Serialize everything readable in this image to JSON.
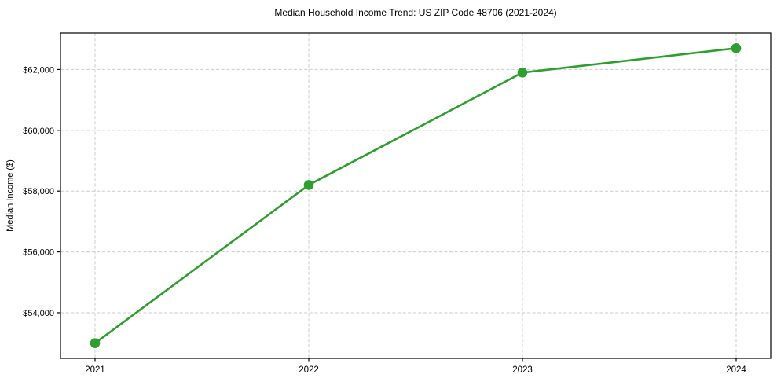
{
  "chart_data": {
    "type": "line",
    "title": "Median Household Income Trend: US ZIP Code 48706 (2021-2024)",
    "xlabel": "",
    "ylabel": "Median Income ($)",
    "categories": [
      "2021",
      "2022",
      "2023",
      "2024"
    ],
    "values": [
      53000,
      58200,
      61900,
      62700
    ],
    "y_ticks": [
      {
        "value": 54000,
        "label": "$54,000"
      },
      {
        "value": 56000,
        "label": "$56,000"
      },
      {
        "value": 58000,
        "label": "$58,000"
      },
      {
        "value": 60000,
        "label": "$60,000"
      },
      {
        "value": 62000,
        "label": "$62,000"
      }
    ],
    "ylim": [
      52500,
      63200
    ],
    "grid": "dashed, both axes",
    "legend_position": "none",
    "line_color": "#2ca02c",
    "marker": "circle",
    "grid_color": "#cccccc",
    "spine_color": "#000000",
    "background_color": "#ffffff"
  }
}
